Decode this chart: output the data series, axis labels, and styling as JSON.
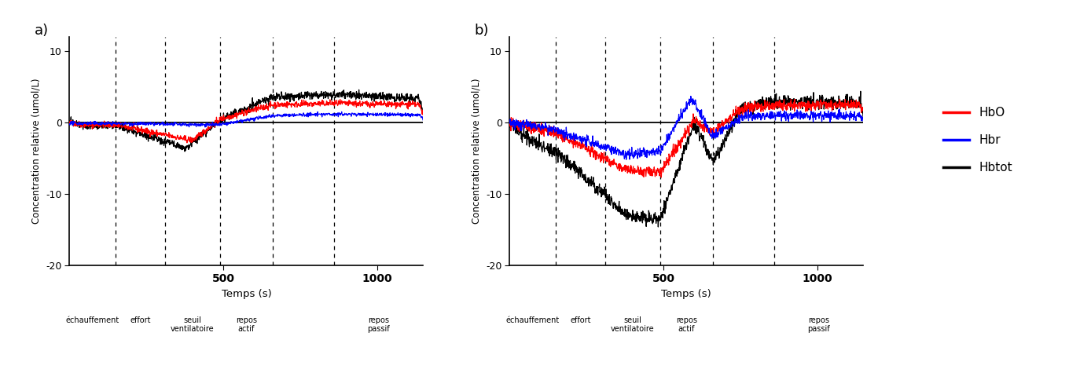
{
  "panel_a_label": "a)",
  "panel_b_label": "b)",
  "ylabel": "Concentration relative (umol/L)",
  "xlabel": "Temps (s)",
  "ylim": [
    -20,
    12
  ],
  "xlim": [
    0,
    1150
  ],
  "xticks": [
    500,
    1000
  ],
  "yticks": [
    -20,
    -10,
    0,
    10
  ],
  "phase_lines_x": [
    150,
    310,
    490,
    660,
    860
  ],
  "phase_labels_a": [
    "échauffement",
    "effort",
    "seuil\nventilatoire",
    "repos\nactif",
    "repos\npassif"
  ],
  "phase_labels_b": [
    "échauffement",
    "effort",
    "seuil\nventilatoire",
    "repos\nactif",
    "repos\npassif"
  ],
  "colors": {
    "HbO": "#FF0000",
    "Hbr": "#0000FF",
    "Hbtot": "#000000"
  },
  "legend_labels": [
    "HbO",
    "Hbr",
    "Hbtot"
  ],
  "background_color": "#FFFFFF",
  "seed": 42
}
